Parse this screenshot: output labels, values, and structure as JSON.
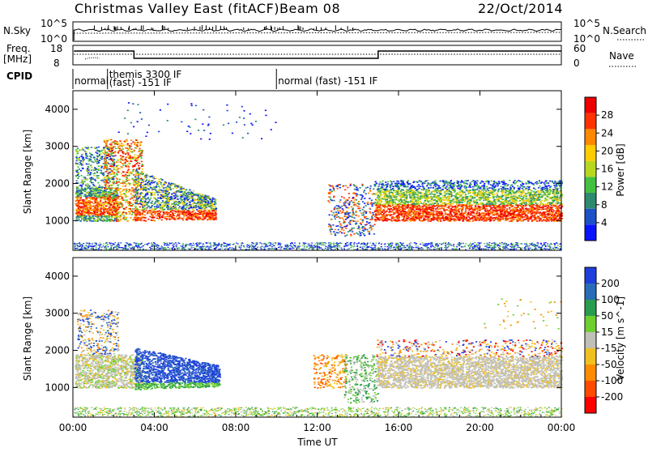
{
  "header": {
    "title": "Christmas Valley East (fitACF)",
    "beam": "Beam 08",
    "date": "22/Oct/2014"
  },
  "panels": {
    "nsky": {
      "label": "N.Sky",
      "left_ticks": [
        "10^5",
        "10^0"
      ],
      "right_ticks": [
        "10^5",
        "10^0"
      ],
      "right_label": "N.Search"
    },
    "freq": {
      "label_line1": "Freq.",
      "label_line2": "[MHz]",
      "left_ticks": [
        "18",
        "8"
      ],
      "right_ticks": [
        "60",
        "0"
      ],
      "right_label": "Nave"
    },
    "cpid": {
      "label": "CPID",
      "segments": [
        {
          "start_hour": 0.0,
          "end_hour": 1.7,
          "text": "normal",
          "text2": ""
        },
        {
          "start_hour": 1.7,
          "end_hour": 10.0,
          "text": "themis 3300 IF",
          "text2": "(fast) -151 IF"
        },
        {
          "start_hour": 10.0,
          "end_hour": 24.0,
          "text": "normal (fast) -151 IF",
          "text2": ""
        }
      ]
    }
  },
  "colors": {
    "power_scale": [
      "#0a14ff",
      "#1e50c8",
      "#2e8a6e",
      "#44c040",
      "#b8d820",
      "#ffcc00",
      "#ff8800",
      "#ff3300",
      "#ee0000"
    ],
    "velocity_scale": [
      "#1f3fdc",
      "#2a6cb8",
      "#2a9c50",
      "#6ed030",
      "#c0c0b8",
      "#f0c020",
      "#ff8c00",
      "#ff4a00",
      "#ff0000"
    ]
  },
  "chart_data": [
    {
      "type": "heatmap",
      "name": "power",
      "ylabel": "Slant Range [km]",
      "yticks": [
        "4000",
        "3000",
        "2000",
        "1000"
      ],
      "ylim": [
        200,
        4500
      ],
      "xlim_hours": [
        0,
        24
      ],
      "colorbar_label": "Power [dB]",
      "colorbar_ticks": [
        "28",
        "24",
        "20",
        "16",
        "12",
        "8",
        "4"
      ],
      "colorbar_range": [
        0,
        32
      ]
    },
    {
      "type": "heatmap",
      "name": "velocity",
      "ylabel": "Slant Range [km]",
      "yticks": [
        "4000",
        "3000",
        "2000",
        "1000"
      ],
      "ylim": [
        200,
        4500
      ],
      "xlim_hours": [
        0,
        24
      ],
      "xticks": [
        "00:00",
        "04:00",
        "08:00",
        "12:00",
        "16:00",
        "20:00",
        "00:00"
      ],
      "xlabel": "Time UT",
      "colorbar_label": "Velocity [m s^-1]",
      "colorbar_ticks": [
        "200",
        "100",
        "50",
        "15",
        "-15",
        "-50",
        "-100",
        "-200"
      ]
    }
  ]
}
